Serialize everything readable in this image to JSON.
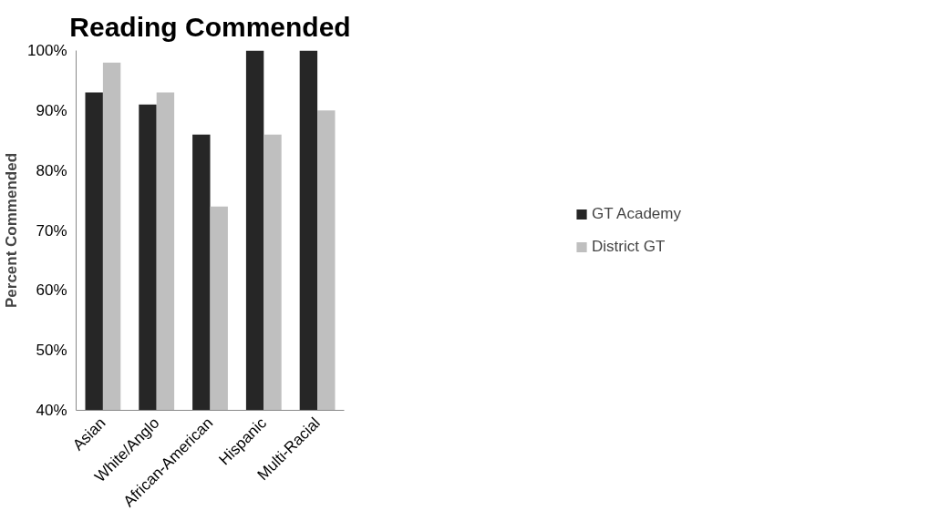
{
  "chart_data": {
    "type": "bar",
    "title": "Reading Commended",
    "ylabel": "Percent Commended",
    "categories": [
      "Asian",
      "White/Anglo",
      "African-American",
      "Hispanic",
      "Multi-Racial"
    ],
    "series": [
      {
        "name": "GT Academy",
        "color": "#262626",
        "values": [
          93,
          91,
          86,
          100,
          100
        ]
      },
      {
        "name": "District GT",
        "color": "#bfbfbf",
        "values": [
          98,
          93,
          74,
          86,
          90
        ]
      }
    ],
    "ylim": [
      40,
      100
    ],
    "yticks": [
      {
        "value": 40,
        "label": "40%"
      },
      {
        "value": 50,
        "label": "50%"
      },
      {
        "value": 60,
        "label": "60%"
      },
      {
        "value": 70,
        "label": "70%"
      },
      {
        "value": 80,
        "label": "80%"
      },
      {
        "value": 90,
        "label": "90%"
      },
      {
        "value": 100,
        "label": "100%"
      }
    ],
    "grid": false,
    "legend": "right"
  }
}
